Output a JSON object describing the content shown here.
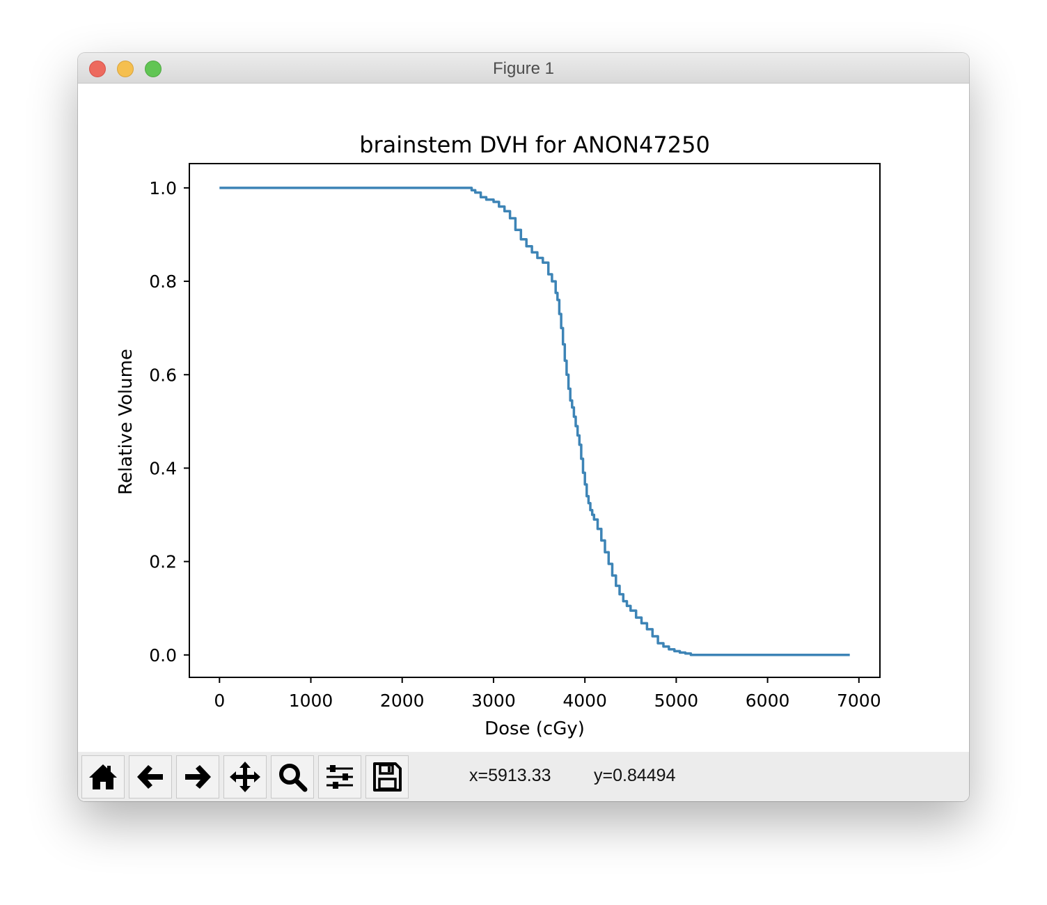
{
  "window": {
    "title": "Figure 1"
  },
  "toolbar": {
    "buttons": [
      {
        "name": "home",
        "icon": "home-icon"
      },
      {
        "name": "back",
        "icon": "arrow-left-icon"
      },
      {
        "name": "forward",
        "icon": "arrow-right-icon"
      },
      {
        "name": "pan",
        "icon": "move-icon"
      },
      {
        "name": "zoom",
        "icon": "magnifier-icon"
      },
      {
        "name": "configure-subplots",
        "icon": "sliders-icon"
      },
      {
        "name": "save",
        "icon": "floppy-disk-icon"
      }
    ],
    "coord_x": "x=5913.33",
    "coord_y": "y=0.84494"
  },
  "chart_data": {
    "type": "line",
    "title": "brainstem DVH for ANON47250",
    "xlabel": "Dose (cGy)",
    "ylabel": "Relative Volume",
    "xlim": [
      -330,
      7230
    ],
    "ylim": [
      -0.048,
      1.052
    ],
    "xticks": [
      0,
      1000,
      2000,
      3000,
      4000,
      5000,
      6000,
      7000
    ],
    "yticks": [
      0.0,
      0.2,
      0.4,
      0.6,
      0.8,
      1.0
    ],
    "xtick_labels": [
      "0",
      "1000",
      "2000",
      "3000",
      "4000",
      "5000",
      "6000",
      "7000"
    ],
    "ytick_labels": [
      "0.0",
      "0.2",
      "0.4",
      "0.6",
      "0.8",
      "1.0"
    ],
    "grid": false,
    "line_color": "#3d84b6",
    "series": [
      {
        "x": [
          0,
          2720,
          2760,
          2800,
          2860,
          2920,
          3000,
          3060,
          3120,
          3180,
          3240,
          3300,
          3360,
          3420,
          3480,
          3540,
          3600,
          3640,
          3680,
          3700,
          3720,
          3740,
          3760,
          3780,
          3800,
          3820,
          3840,
          3860,
          3880,
          3900,
          3920,
          3940,
          3960,
          3980,
          4000,
          4020,
          4040,
          4060,
          4080,
          4100,
          4140,
          4180,
          4220,
          4260,
          4300,
          4340,
          4380,
          4420,
          4460,
          4500,
          4560,
          4620,
          4680,
          4740,
          4800,
          4860,
          4920,
          4980,
          5040,
          5100,
          5160,
          5500,
          6000,
          6500,
          6900
        ],
        "y": [
          1.0,
          1.0,
          0.995,
          0.99,
          0.98,
          0.975,
          0.97,
          0.96,
          0.95,
          0.935,
          0.91,
          0.89,
          0.875,
          0.862,
          0.85,
          0.84,
          0.815,
          0.8,
          0.775,
          0.76,
          0.73,
          0.7,
          0.665,
          0.63,
          0.6,
          0.57,
          0.545,
          0.53,
          0.51,
          0.49,
          0.47,
          0.45,
          0.42,
          0.39,
          0.365,
          0.34,
          0.325,
          0.31,
          0.3,
          0.29,
          0.27,
          0.245,
          0.22,
          0.195,
          0.17,
          0.148,
          0.13,
          0.115,
          0.105,
          0.095,
          0.08,
          0.068,
          0.055,
          0.04,
          0.025,
          0.018,
          0.012,
          0.008,
          0.005,
          0.003,
          0.0,
          0.0,
          0.0,
          0.0,
          0.0
        ]
      }
    ]
  }
}
